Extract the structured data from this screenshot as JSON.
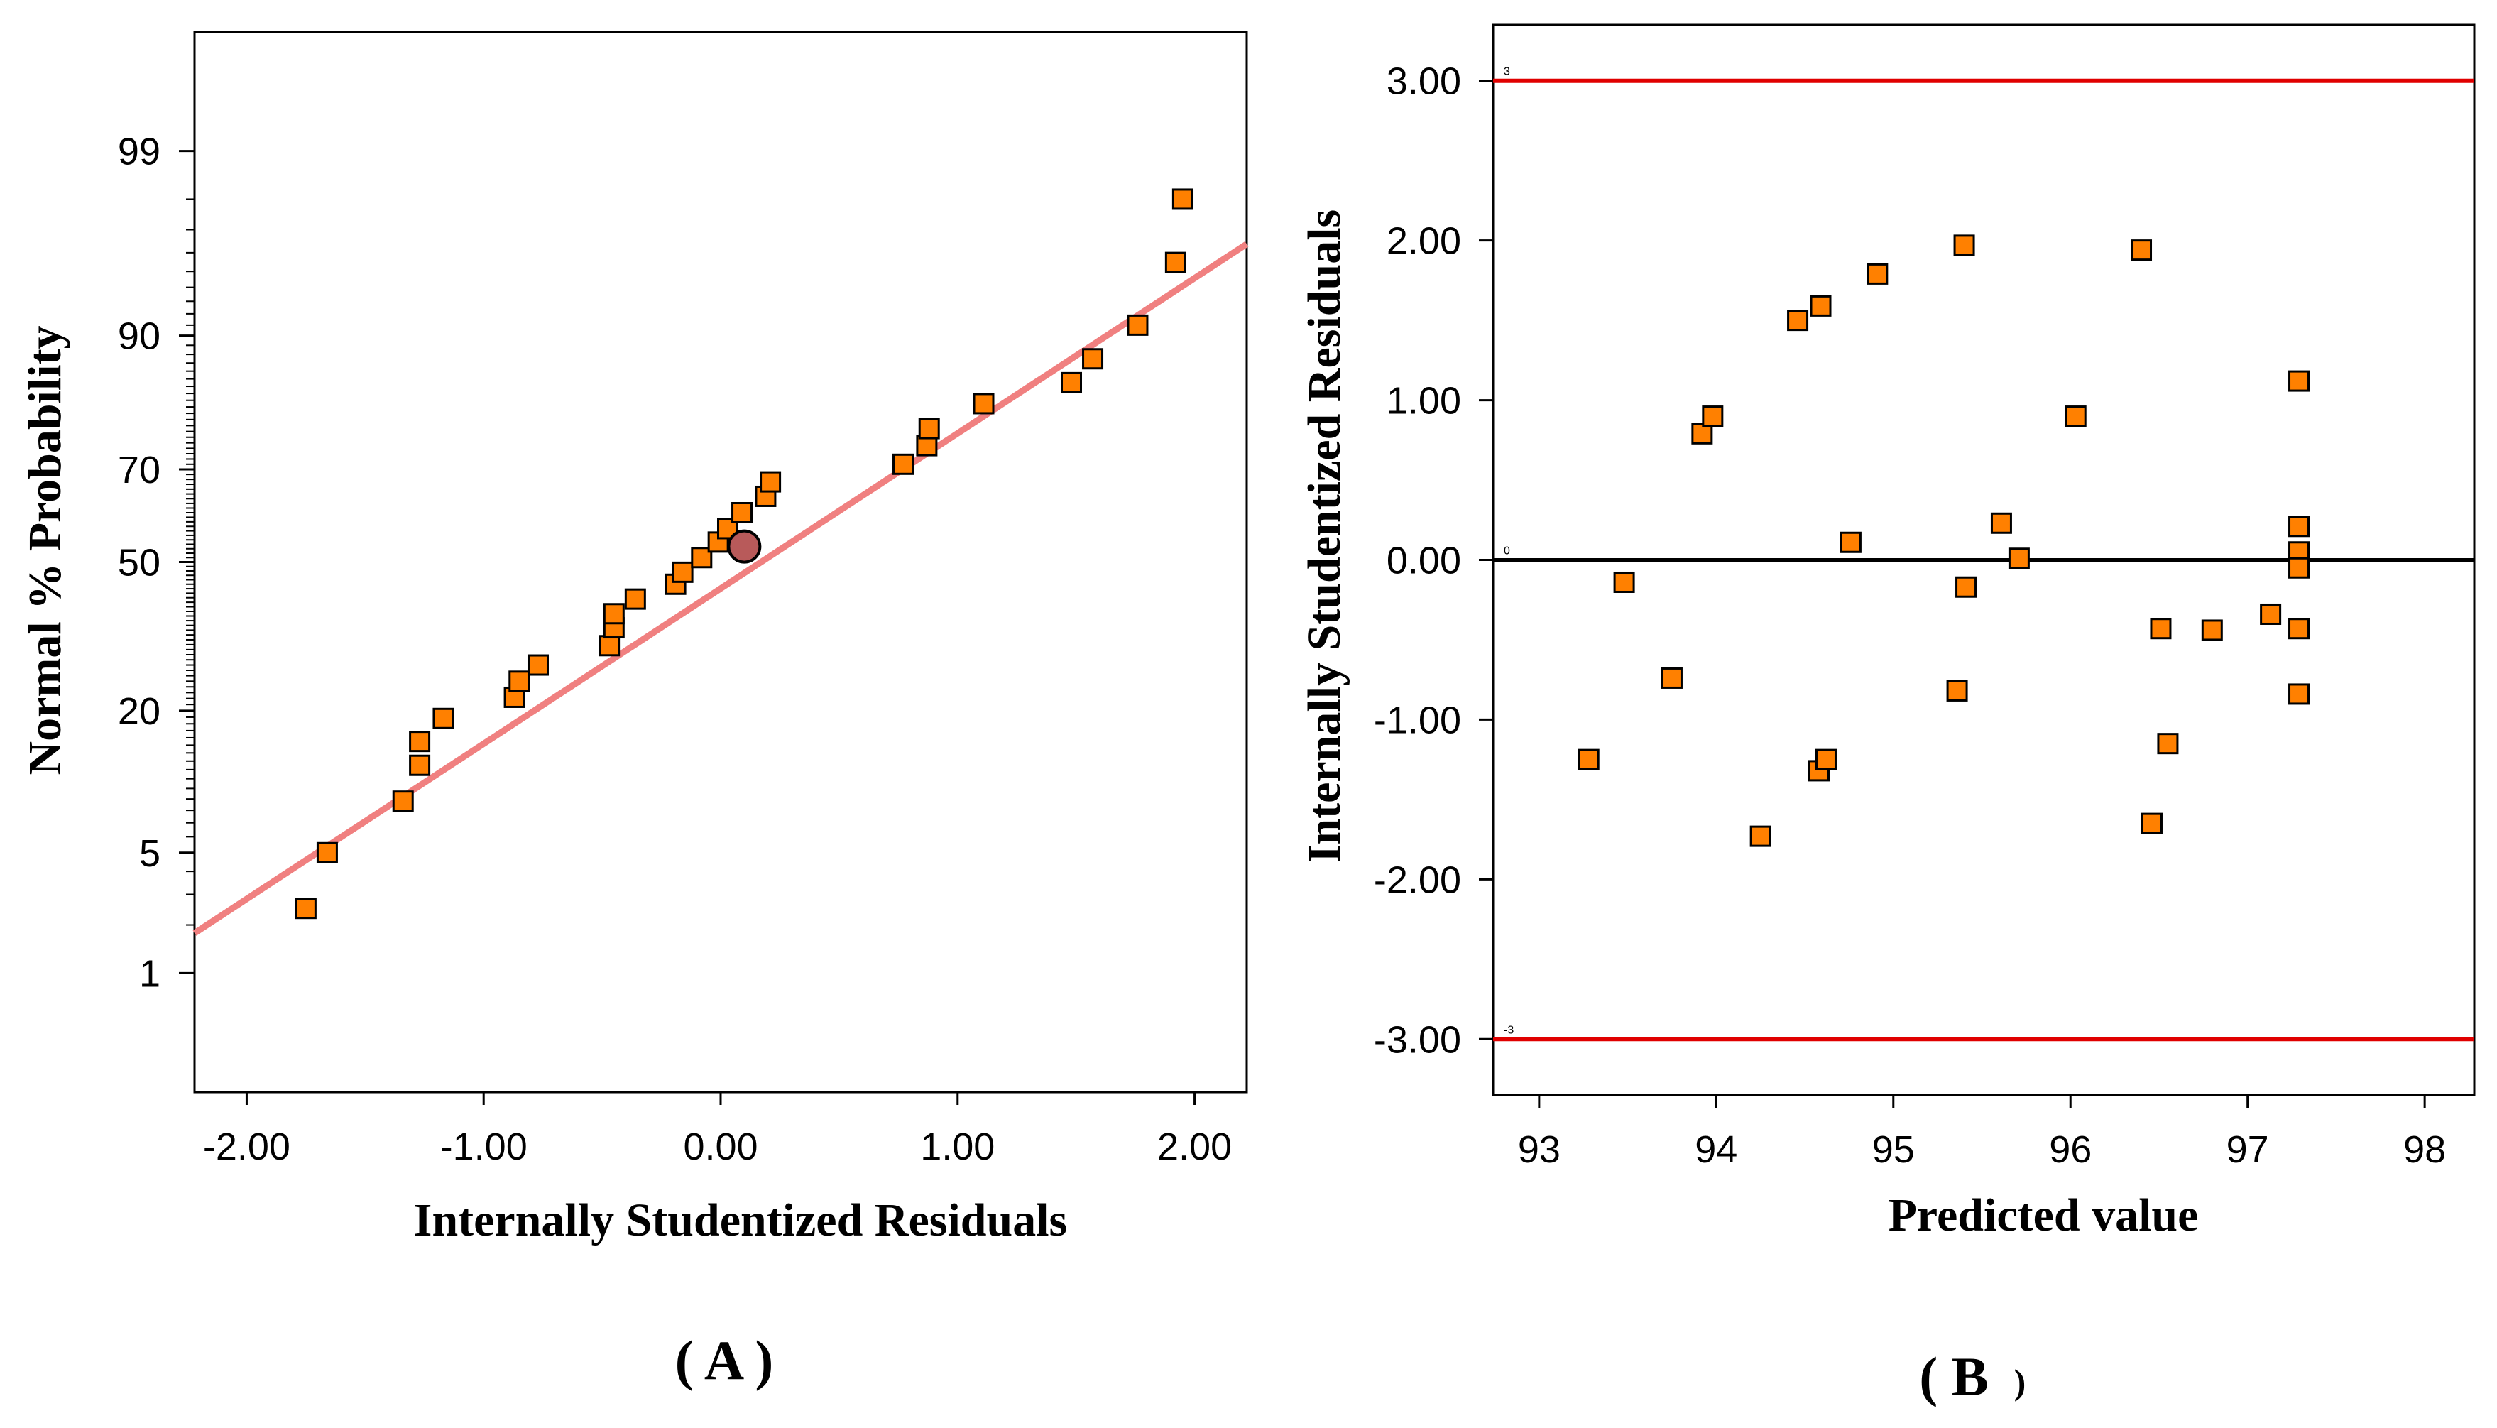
{
  "colors": {
    "marker_fill": "#ff8000",
    "marker_stroke": "#000000",
    "fit_line": "#f08080",
    "highlight_fill": "#b85a5a",
    "limit_line": "#e00000",
    "zero_line": "#000000"
  },
  "chart_data": [
    {
      "id": "A",
      "type": "scatter",
      "title": "",
      "xlabel": "Internally Studentized Residuals",
      "ylabel": "Normal % Probability",
      "panel_label_open": "( A )",
      "xlim": [
        -2.22,
        2.22
      ],
      "ylim_z": [
        -3.0,
        3.0
      ],
      "x_ticks": [
        -2,
        -1,
        0,
        1,
        2
      ],
      "x_tick_labels": [
        "-2.00",
        "-1.00",
        "0.00",
        "1.00",
        "2.00"
      ],
      "y_ticks": [
        1,
        5,
        20,
        50,
        70,
        90,
        99
      ],
      "y_tick_labels": [
        "1",
        "5",
        "20",
        "50",
        "70",
        "90",
        "99"
      ],
      "fit_line": {
        "points": [
          [
            -2.22,
            -2.1
          ],
          [
            2.22,
            1.8
          ]
        ]
      },
      "highlight_point": {
        "x": 0.1,
        "p": 53.5
      },
      "points": [
        {
          "x": -1.75,
          "p": 2.5
        },
        {
          "x": -1.66,
          "p": 5.0
        },
        {
          "x": -1.34,
          "p": 8.8
        },
        {
          "x": -1.27,
          "p": 12.5
        },
        {
          "x": -1.27,
          "p": 15.5
        },
        {
          "x": -1.17,
          "p": 18.8
        },
        {
          "x": -0.87,
          "p": 22.2
        },
        {
          "x": -0.85,
          "p": 25.0
        },
        {
          "x": -0.77,
          "p": 28.0
        },
        {
          "x": -0.47,
          "p": 31.8
        },
        {
          "x": -0.45,
          "p": 35.5
        },
        {
          "x": -0.45,
          "p": 38.5
        },
        {
          "x": -0.36,
          "p": 41.7
        },
        {
          "x": -0.19,
          "p": 45.0
        },
        {
          "x": -0.16,
          "p": 47.7
        },
        {
          "x": -0.08,
          "p": 51.0
        },
        {
          "x": -0.01,
          "p": 54.5
        },
        {
          "x": 0.03,
          "p": 57.5
        },
        {
          "x": 0.09,
          "p": 61.0
        },
        {
          "x": 0.19,
          "p": 64.5
        },
        {
          "x": 0.21,
          "p": 67.5
        },
        {
          "x": 0.77,
          "p": 71.0
        },
        {
          "x": 0.87,
          "p": 74.5
        },
        {
          "x": 0.88,
          "p": 77.5
        },
        {
          "x": 1.11,
          "p": 81.5
        },
        {
          "x": 1.48,
          "p": 84.5
        },
        {
          "x": 1.57,
          "p": 87.5
        },
        {
          "x": 1.76,
          "p": 91.0
        },
        {
          "x": 1.92,
          "p": 95.5
        },
        {
          "x": 1.95,
          "p": 98.0
        }
      ]
    },
    {
      "id": "B",
      "type": "scatter",
      "title": "",
      "xlabel": "Predicted value",
      "ylabel": "Internally Studentized Residuals",
      "panel_label_open": "( B",
      "panel_label_close": ")",
      "xlim": [
        92.74,
        98.28
      ],
      "ylim": [
        -3.35,
        3.35
      ],
      "x_ticks": [
        93,
        94,
        95,
        96,
        97,
        98
      ],
      "x_tick_labels": [
        "93",
        "94",
        "95",
        "96",
        "97",
        "98"
      ],
      "y_ticks": [
        -3,
        -2,
        -1,
        0,
        1,
        2,
        3
      ],
      "y_tick_labels": [
        "-3.00",
        "-2.00",
        "-1.00",
        "0.00",
        "1.00",
        "2.00",
        "3.00"
      ],
      "reference_lines": [
        {
          "y": 3,
          "label": "3",
          "kind": "limit"
        },
        {
          "y": 0,
          "label": "0",
          "kind": "zero"
        },
        {
          "y": -3,
          "label": "-3",
          "kind": "limit"
        }
      ],
      "points": [
        {
          "x": 93.28,
          "y": -1.25
        },
        {
          "x": 93.48,
          "y": -0.14
        },
        {
          "x": 93.75,
          "y": -0.74
        },
        {
          "x": 93.92,
          "y": 0.79
        },
        {
          "x": 93.98,
          "y": 0.9
        },
        {
          "x": 94.25,
          "y": -1.73
        },
        {
          "x": 94.46,
          "y": 1.5
        },
        {
          "x": 94.58,
          "y": -1.32
        },
        {
          "x": 94.59,
          "y": 1.59
        },
        {
          "x": 94.62,
          "y": -1.25
        },
        {
          "x": 94.76,
          "y": 0.11
        },
        {
          "x": 94.91,
          "y": 1.79
        },
        {
          "x": 95.36,
          "y": -0.82
        },
        {
          "x": 95.4,
          "y": 1.97
        },
        {
          "x": 95.41,
          "y": -0.17
        },
        {
          "x": 95.61,
          "y": 0.23
        },
        {
          "x": 95.71,
          "y": 0.01
        },
        {
          "x": 96.03,
          "y": 0.9
        },
        {
          "x": 96.4,
          "y": 1.94
        },
        {
          "x": 96.46,
          "y": -1.65
        },
        {
          "x": 96.51,
          "y": -0.43
        },
        {
          "x": 96.55,
          "y": -1.15
        },
        {
          "x": 96.8,
          "y": -0.44
        },
        {
          "x": 97.13,
          "y": -0.34
        },
        {
          "x": 97.29,
          "y": 1.12
        },
        {
          "x": 97.29,
          "y": 0.21
        },
        {
          "x": 97.29,
          "y": 0.05
        },
        {
          "x": 97.29,
          "y": -0.05
        },
        {
          "x": 97.29,
          "y": -0.43
        },
        {
          "x": 97.29,
          "y": -0.84
        }
      ]
    }
  ]
}
